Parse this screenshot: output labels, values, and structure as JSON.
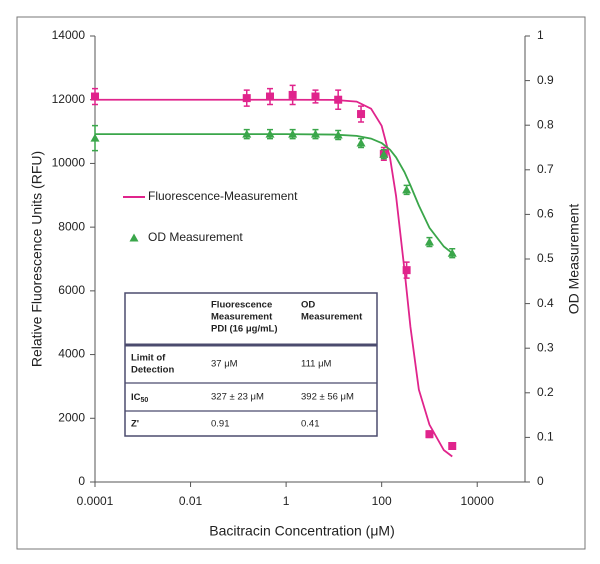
{
  "chart_data": {
    "type": "scatter",
    "xlabel": "Bacitracin Concentration (μM)",
    "ylabel": "Relative Fluorescence Units (RFU)",
    "y2label": "OD Measurement",
    "xscale": "log",
    "xlim": [
      0.0001,
      100000
    ],
    "xticks": [
      0.0001,
      0.01,
      1,
      100,
      10000
    ],
    "ylim": [
      0,
      14000
    ],
    "yticks": [
      0,
      2000,
      4000,
      6000,
      8000,
      10000,
      12000,
      14000
    ],
    "y2lim": [
      0,
      1
    ],
    "y2ticks": [
      0,
      0.1,
      0.2,
      0.3,
      0.4,
      0.5,
      0.6,
      0.7,
      0.8,
      0.9,
      1
    ],
    "grid": false,
    "x": [
      0.0001,
      0.15,
      0.46,
      1.37,
      4.12,
      12.3,
      37,
      111,
      333,
      1000,
      3000
    ],
    "fit_x": [
      0.0001,
      1,
      10,
      30,
      60,
      100,
      150,
      200,
      300,
      400,
      600,
      1000,
      2000,
      3000
    ],
    "series": [
      {
        "name": "Fluorescence-Measurement",
        "color": "#e0248c",
        "marker": "square",
        "legend": "line",
        "values": [
          12100,
          12050,
          12100,
          12150,
          12100,
          12000,
          11550,
          10300,
          6650,
          1500,
          1130
        ],
        "errors": [
          250,
          250,
          250,
          300,
          200,
          300,
          250,
          200,
          250,
          100,
          100
        ],
        "fit": [
          12000,
          12000,
          11995,
          11940,
          11720,
          11180,
          10170,
          8980,
          6660,
          4870,
          2900,
          1800,
          1000,
          800
        ]
      },
      {
        "name": "OD Measurement",
        "color": "#3aa64a",
        "marker": "triangle",
        "legend": "marker",
        "axis": "y2",
        "values": [
          0.771,
          0.78,
          0.78,
          0.78,
          0.78,
          0.778,
          0.76,
          0.735,
          0.655,
          0.538,
          0.513
        ],
        "errors": [
          0.028,
          0.01,
          0.01,
          0.01,
          0.01,
          0.01,
          0.01,
          0.01,
          0.01,
          0.01,
          0.01
        ],
        "fit": [
          0.78,
          0.78,
          0.779,
          0.776,
          0.77,
          0.76,
          0.745,
          0.728,
          0.695,
          0.665,
          0.62,
          0.57,
          0.528,
          0.513
        ]
      }
    ],
    "table": {
      "columns": [
        [
          "Fluorescence",
          "Measurement",
          "PDI (16 μg/mL)"
        ],
        [
          "OD",
          "Measurement"
        ]
      ],
      "rows": [
        {
          "label": [
            "Limit of",
            "Detection"
          ],
          "cells": [
            "37 μM",
            "111 μM"
          ]
        },
        {
          "label": [
            "IC"
          ],
          "label_sub": "50",
          "cells": [
            "327 ± 23 μM",
            "392 ± 56 μM"
          ]
        },
        {
          "label": [
            "Z'"
          ],
          "cells": [
            "0.91",
            "0.41"
          ]
        }
      ]
    }
  }
}
